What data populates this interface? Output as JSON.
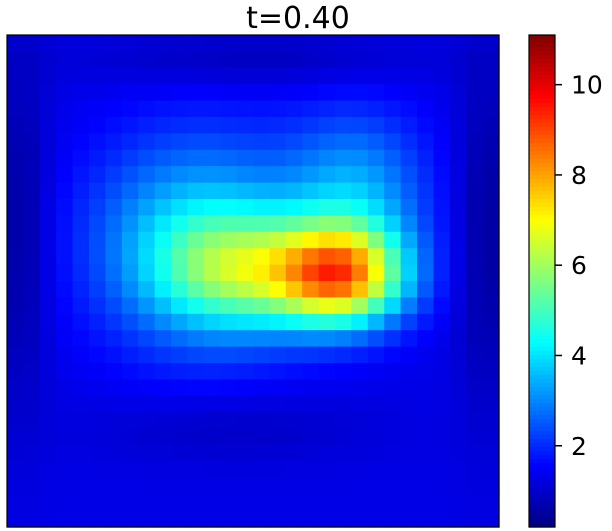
{
  "chart_data": {
    "type": "heatmap",
    "title": "t=0.40",
    "colormap": "jet",
    "grid": false,
    "colorbar": {
      "min": 0.2,
      "max": 11.1,
      "ticks": [
        2,
        4,
        6,
        8,
        10
      ],
      "tick_labels": [
        "2",
        "4",
        "6",
        "8",
        "10"
      ]
    },
    "background_level": 1.3,
    "blobs": [
      {
        "cx": 0.39,
        "cy": 0.42,
        "sx": 0.15,
        "sy": 0.15,
        "amp": 2.6
      },
      {
        "cx": 0.71,
        "cy": 0.33,
        "sx": 0.1,
        "sy": 0.12,
        "amp": 2.0
      },
      {
        "cx": 0.49,
        "cy": 0.48,
        "sx": 0.12,
        "sy": 0.08,
        "amp": 3.0
      },
      {
        "cx": 0.68,
        "cy": 0.49,
        "sx": 0.09,
        "sy": 0.07,
        "amp": 6.0
      }
    ],
    "troughs": [
      {
        "cx": 0.03,
        "cy": 0.4,
        "sx": 0.04,
        "sy": 0.25,
        "amp": 0.8
      },
      {
        "cx": 0.97,
        "cy": 0.4,
        "sx": 0.04,
        "sy": 0.25,
        "amp": 0.8
      },
      {
        "cx": 0.5,
        "cy": 0.05,
        "sx": 0.25,
        "sy": 0.04,
        "amp": 0.5
      },
      {
        "cx": 0.45,
        "cy": 0.8,
        "sx": 0.2,
        "sy": 0.05,
        "amp": 0.4
      }
    ]
  }
}
